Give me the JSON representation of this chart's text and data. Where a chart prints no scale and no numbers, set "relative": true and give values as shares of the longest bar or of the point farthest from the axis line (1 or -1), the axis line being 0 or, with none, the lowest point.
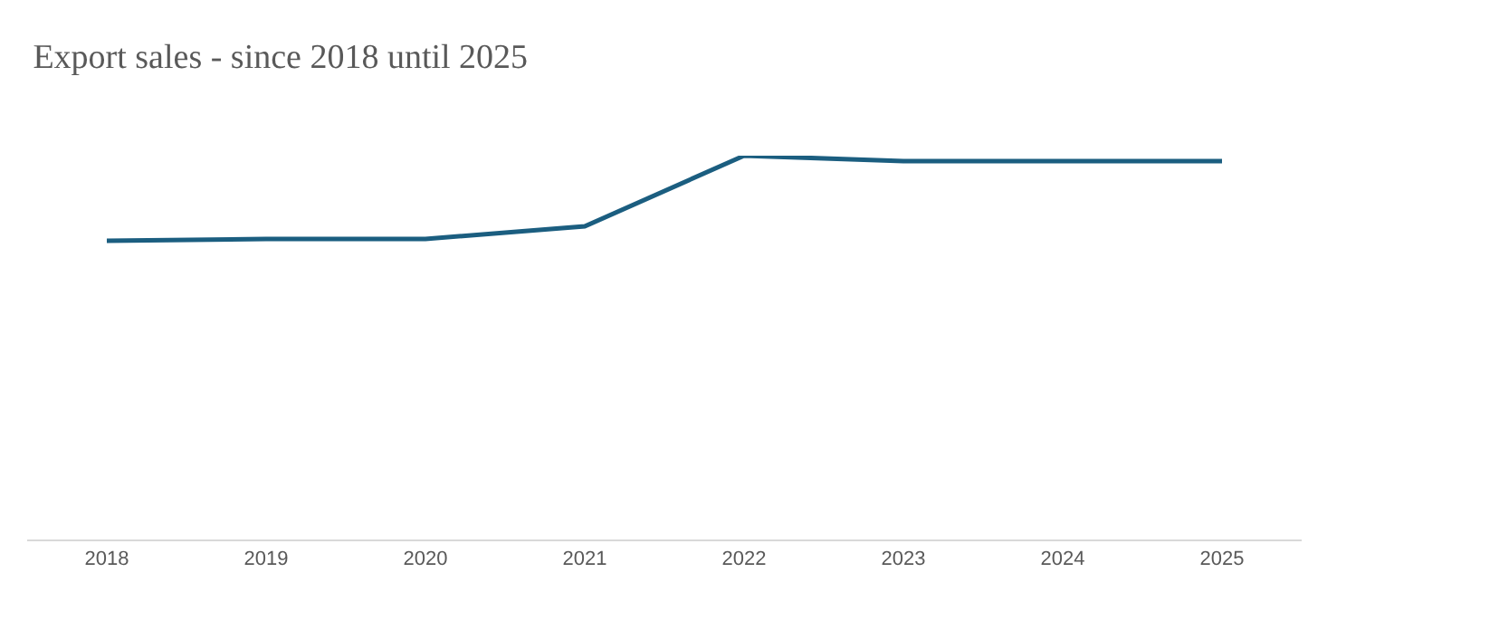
{
  "chart_data": {
    "type": "line",
    "title": "Export sales - since 2018 until 2025",
    "relative": true,
    "categories": [
      "2018",
      "2019",
      "2020",
      "2021",
      "2022",
      "2023",
      "2024",
      "2025"
    ],
    "series": [
      {
        "color": "#1b5e80",
        "values": [
          0.778,
          0.783,
          0.783,
          0.816,
          1,
          0.986,
          0.986,
          0.986
        ]
      }
    ],
    "marker": "none",
    "line_style": "solid"
  }
}
